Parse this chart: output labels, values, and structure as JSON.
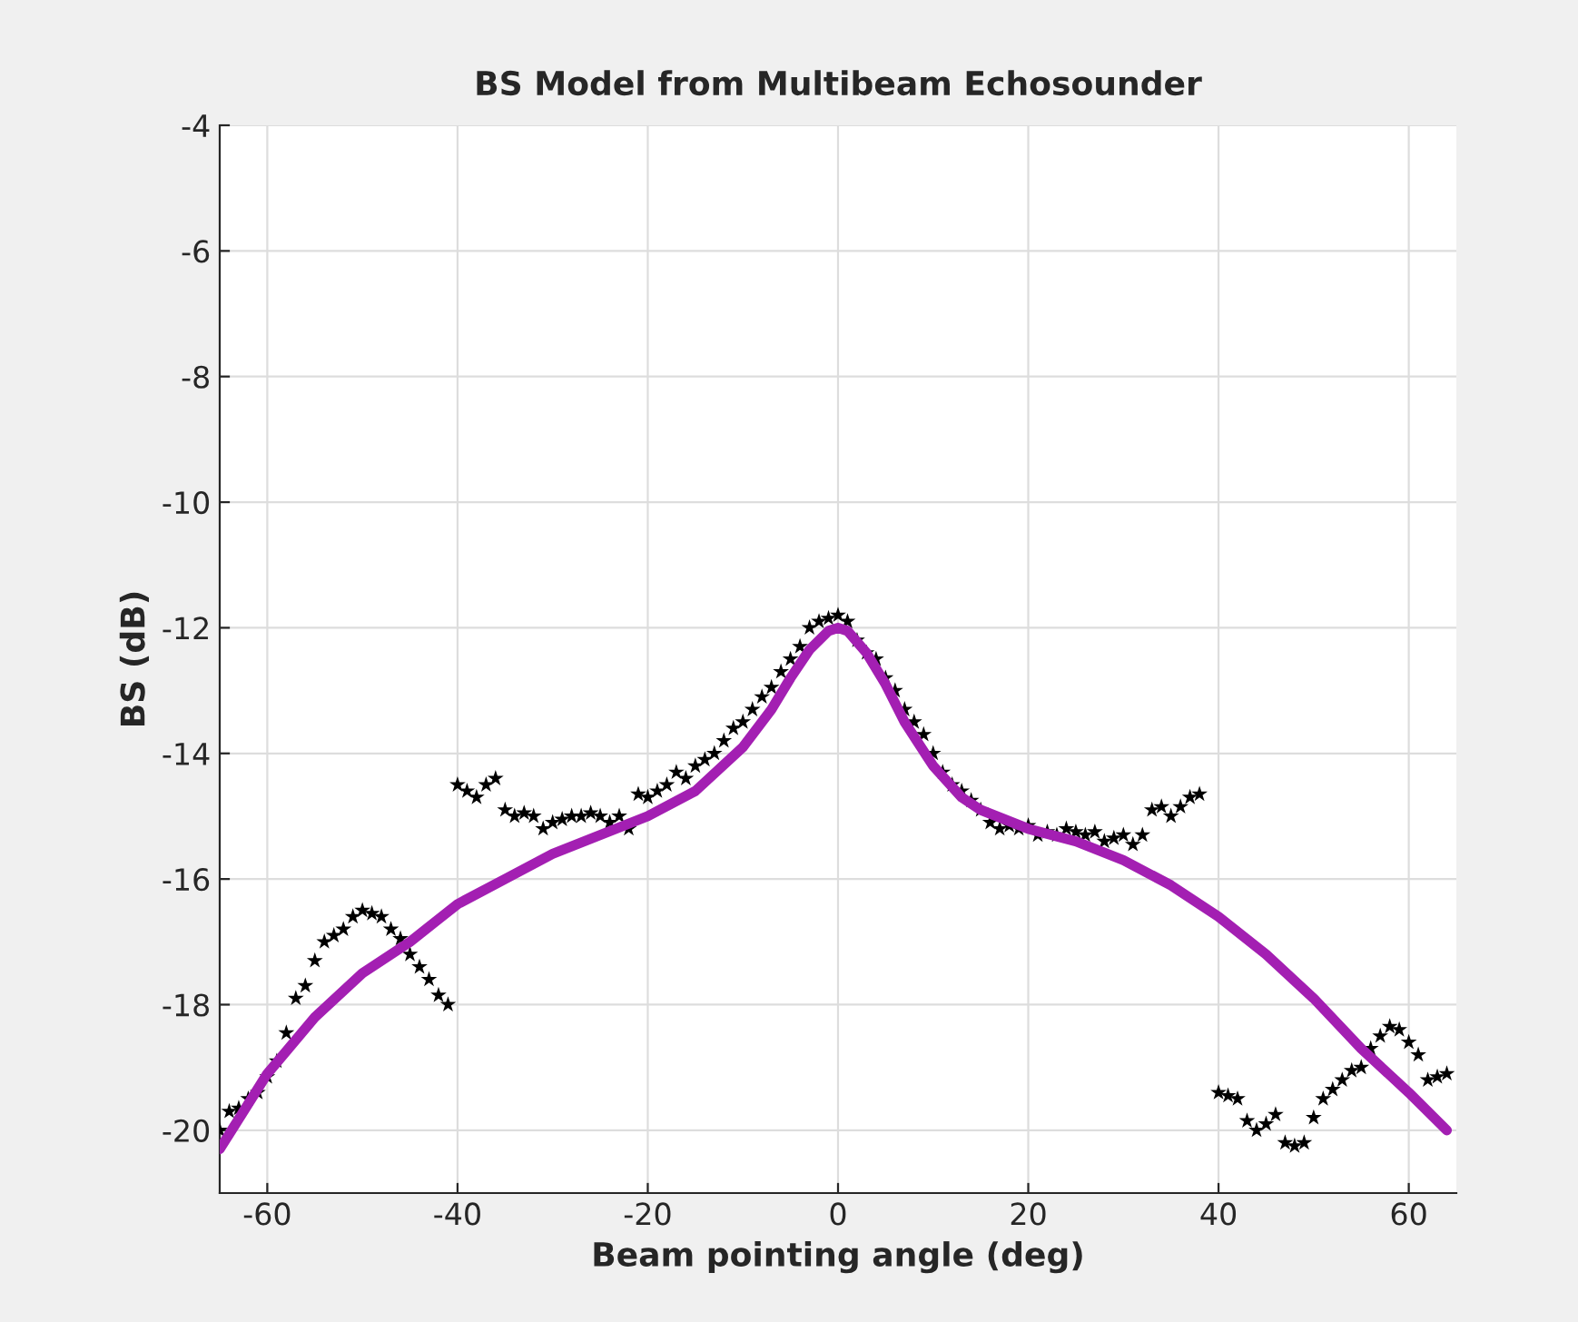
{
  "chart_data": {
    "type": "scatter",
    "title": "BS Model from Multibeam Echosounder",
    "xlabel": "Beam pointing angle (deg)",
    "ylabel": "BS (dB)",
    "xlim": [
      -65,
      65
    ],
    "ylim": [
      -21,
      -4
    ],
    "xticks": [
      -60,
      -40,
      -20,
      0,
      20,
      40,
      60
    ],
    "yticks": [
      -20,
      -18,
      -16,
      -14,
      -12,
      -10,
      -8,
      -6,
      -4
    ],
    "grid": true,
    "legend": false,
    "series": [
      {
        "marker": "star",
        "color": "#000000",
        "x": [
          -65,
          -64,
          -63,
          -62,
          -61,
          -60,
          -59,
          -58,
          -57,
          -56,
          -55,
          -54,
          -53,
          -52,
          -51,
          -50,
          -49,
          -48,
          -47,
          -46,
          -45,
          -44,
          -43,
          -42,
          -41,
          -40,
          -39,
          -38,
          -37,
          -36,
          -35,
          -34,
          -33,
          -32,
          -31,
          -30,
          -29,
          -28,
          -27,
          -26,
          -25,
          -24,
          -23,
          -22,
          -21,
          -20,
          -19,
          -18,
          -17,
          -16,
          -15,
          -14,
          -13,
          -12,
          -11,
          -10,
          -9,
          -8,
          -7,
          -6,
          -5,
          -4,
          -3,
          -2,
          -1,
          0,
          1,
          2,
          3,
          4,
          5,
          6,
          7,
          8,
          9,
          10,
          11,
          12,
          13,
          14,
          15,
          16,
          17,
          18,
          19,
          20,
          21,
          22,
          23,
          24,
          25,
          26,
          27,
          28,
          29,
          30,
          31,
          32,
          33,
          34,
          35,
          36,
          37,
          38,
          40,
          41,
          42,
          43,
          44,
          45,
          46,
          47,
          48,
          49,
          50,
          51,
          52,
          53,
          54,
          55,
          56,
          57,
          58,
          59,
          60,
          61,
          62,
          63,
          64
        ],
        "values": [
          -20.0,
          -19.7,
          -19.65,
          -19.5,
          -19.4,
          -19.15,
          -18.9,
          -18.45,
          -17.9,
          -17.7,
          -17.3,
          -17.0,
          -16.9,
          -16.8,
          -16.6,
          -16.5,
          -16.55,
          -16.6,
          -16.8,
          -16.95,
          -17.2,
          -17.4,
          -17.6,
          -17.85,
          -18.0,
          -14.5,
          -14.6,
          -14.7,
          -14.5,
          -14.4,
          -14.9,
          -15.0,
          -14.95,
          -15.0,
          -15.2,
          -15.1,
          -15.05,
          -15.0,
          -15.0,
          -14.95,
          -15.0,
          -15.1,
          -15.0,
          -15.2,
          -14.65,
          -14.7,
          -14.6,
          -14.5,
          -14.3,
          -14.4,
          -14.2,
          -14.1,
          -14.0,
          -13.8,
          -13.6,
          -13.5,
          -13.3,
          -13.1,
          -12.95,
          -12.7,
          -12.5,
          -12.3,
          -12.0,
          -11.9,
          -11.85,
          -11.8,
          -11.9,
          -12.2,
          -12.4,
          -12.5,
          -12.8,
          -13.0,
          -13.3,
          -13.5,
          -13.7,
          -14.0,
          -14.3,
          -14.5,
          -14.6,
          -14.75,
          -14.9,
          -15.1,
          -15.2,
          -15.15,
          -15.2,
          -15.15,
          -15.3,
          -15.25,
          -15.3,
          -15.2,
          -15.25,
          -15.3,
          -15.25,
          -15.4,
          -15.35,
          -15.3,
          -15.45,
          -15.3,
          -14.9,
          -14.85,
          -15.0,
          -14.85,
          -14.7,
          -14.65,
          -19.4,
          -19.45,
          -19.5,
          -19.85,
          -20.0,
          -19.9,
          -19.75,
          -20.2,
          -20.25,
          -20.2,
          -19.8,
          -19.5,
          -19.35,
          -19.2,
          -19.05,
          -19.0,
          -18.7,
          -18.5,
          -18.35,
          -18.4,
          -18.6,
          -18.8,
          -19.2,
          -19.15,
          -19.1
        ]
      },
      {
        "type": "line",
        "marker": "none",
        "line_style": "solid",
        "color": "#a31fb2",
        "x": [
          -65,
          -60,
          -55,
          -50,
          -45,
          -40,
          -35,
          -30,
          -25,
          -20,
          -15,
          -10,
          -7,
          -5,
          -3,
          -1,
          0,
          1,
          3,
          5,
          7,
          10,
          13,
          15,
          20,
          25,
          30,
          35,
          40,
          45,
          50,
          55,
          60,
          64
        ],
        "values": [
          -20.3,
          -19.1,
          -18.2,
          -17.5,
          -17.0,
          -16.4,
          -16.0,
          -15.6,
          -15.3,
          -15.0,
          -14.6,
          -13.9,
          -13.3,
          -12.8,
          -12.35,
          -12.05,
          -12.0,
          -12.05,
          -12.4,
          -12.9,
          -13.5,
          -14.2,
          -14.7,
          -14.9,
          -15.2,
          -15.4,
          -15.7,
          -16.1,
          -16.6,
          -17.2,
          -17.9,
          -18.7,
          -19.4,
          -20.0
        ]
      }
    ]
  }
}
